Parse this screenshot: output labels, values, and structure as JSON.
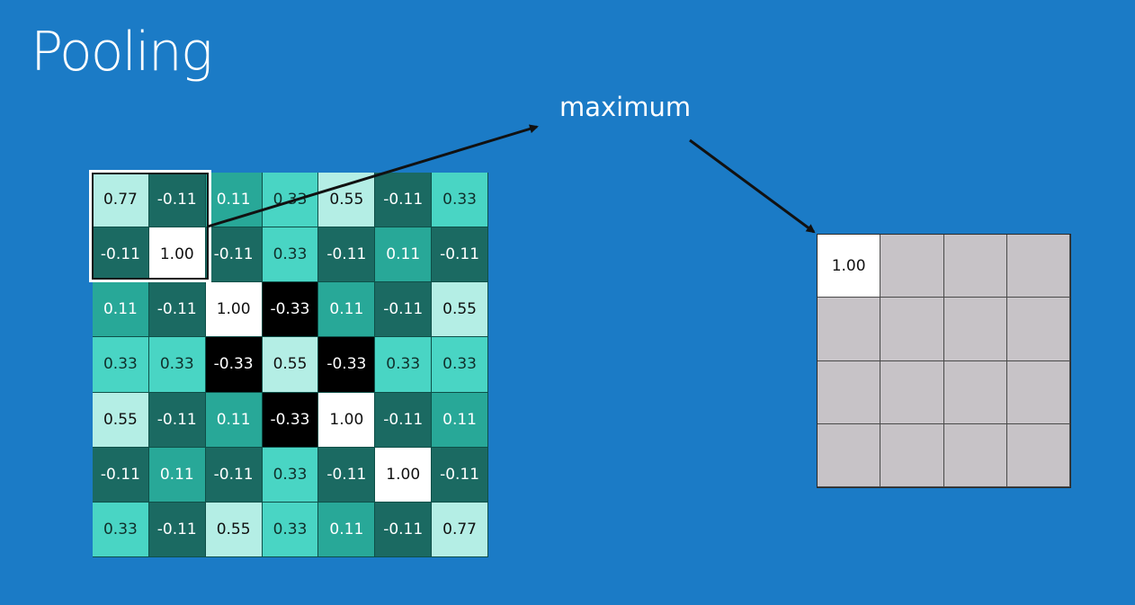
{
  "title": "Pooling",
  "operation_label": "maximum",
  "colors": {
    "background": "#1b7bc6",
    "white": "#ffffff",
    "pale": "#b4eee5",
    "light": "#49d5c4",
    "mid": "#28a898",
    "dark": "#1b6a62",
    "black": "#000000",
    "output_empty": "#c7c3c7"
  },
  "input_matrix": [
    [
      "0.77",
      "-0.11",
      "0.11",
      "0.33",
      "0.55",
      "-0.11",
      "0.33"
    ],
    [
      "-0.11",
      "1.00",
      "-0.11",
      "0.33",
      "-0.11",
      "0.11",
      "-0.11"
    ],
    [
      "0.11",
      "-0.11",
      "1.00",
      "-0.33",
      "0.11",
      "-0.11",
      "0.55"
    ],
    [
      "0.33",
      "0.33",
      "-0.33",
      "0.55",
      "-0.33",
      "0.33",
      "0.33"
    ],
    [
      "0.55",
      "-0.11",
      "0.11",
      "-0.33",
      "1.00",
      "-0.11",
      "0.11"
    ],
    [
      "-0.11",
      "0.11",
      "-0.11",
      "0.33",
      "-0.11",
      "1.00",
      "-0.11"
    ],
    [
      "0.33",
      "-0.11",
      "0.55",
      "0.33",
      "0.11",
      "-0.11",
      "0.77"
    ]
  ],
  "output_matrix": [
    [
      "1.00",
      "",
      "",
      ""
    ],
    [
      "",
      "",
      "",
      ""
    ],
    [
      "",
      "",
      "",
      ""
    ],
    [
      "",
      "",
      "",
      ""
    ]
  ]
}
